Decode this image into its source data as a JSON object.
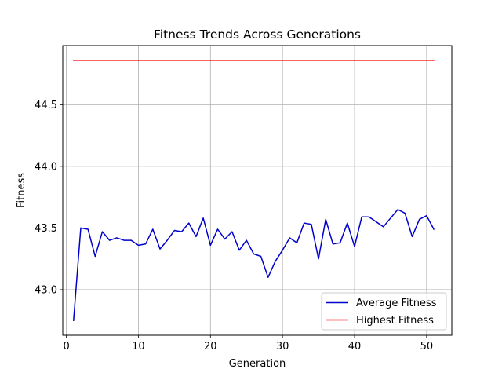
{
  "chart_data": {
    "type": "line",
    "title": "Fitness Trends Across Generations",
    "xlabel": "Generation",
    "ylabel": "Fitness",
    "xlim": [
      -0.5,
      53.5
    ],
    "ylim": [
      42.63,
      44.98
    ],
    "xticks": [
      0,
      10,
      20,
      30,
      40,
      50
    ],
    "xtick_labels": [
      "0",
      "10",
      "20",
      "30",
      "40",
      "50"
    ],
    "yticks": [
      43.0,
      43.5,
      44.0,
      44.5
    ],
    "ytick_labels": [
      "43.0",
      "43.5",
      "44.0",
      "44.5"
    ],
    "grid": true,
    "legend_position": "lower-right",
    "x": [
      1,
      2,
      3,
      4,
      5,
      6,
      7,
      8,
      9,
      10,
      11,
      12,
      13,
      14,
      15,
      16,
      17,
      18,
      19,
      20,
      21,
      22,
      23,
      24,
      25,
      26,
      27,
      28,
      29,
      30,
      31,
      32,
      33,
      34,
      35,
      36,
      37,
      38,
      39,
      40,
      41,
      42,
      43,
      44,
      45,
      46,
      47,
      48,
      49,
      50,
      51
    ],
    "series": [
      {
        "name": "Average Fitness",
        "color": "#0000cc",
        "values": [
          42.75,
          43.5,
          43.49,
          43.27,
          43.47,
          43.4,
          43.42,
          43.4,
          43.4,
          43.36,
          43.37,
          43.49,
          43.33,
          43.4,
          43.48,
          43.47,
          43.54,
          43.43,
          43.58,
          43.36,
          43.49,
          43.41,
          43.47,
          43.32,
          43.4,
          43.29,
          43.27,
          43.1,
          43.23,
          43.32,
          43.42,
          43.38,
          43.54,
          43.53,
          43.25,
          43.57,
          43.37,
          43.38,
          43.54,
          43.35,
          43.59,
          43.59,
          43.55,
          43.51,
          43.58,
          43.65,
          43.62,
          43.43,
          43.57,
          43.6,
          43.49
        ]
      },
      {
        "name": "Highest Fitness",
        "color": "#ff0000",
        "values": [
          44.86,
          44.86,
          44.86,
          44.86,
          44.86,
          44.86,
          44.86,
          44.86,
          44.86,
          44.86,
          44.86,
          44.86,
          44.86,
          44.86,
          44.86,
          44.86,
          44.86,
          44.86,
          44.86,
          44.86,
          44.86,
          44.86,
          44.86,
          44.86,
          44.86,
          44.86,
          44.86,
          44.86,
          44.86,
          44.86,
          44.86,
          44.86,
          44.86,
          44.86,
          44.86,
          44.86,
          44.86,
          44.86,
          44.86,
          44.86,
          44.86,
          44.86,
          44.86,
          44.86,
          44.86,
          44.86,
          44.86,
          44.86,
          44.86,
          44.86,
          44.86
        ]
      }
    ]
  }
}
